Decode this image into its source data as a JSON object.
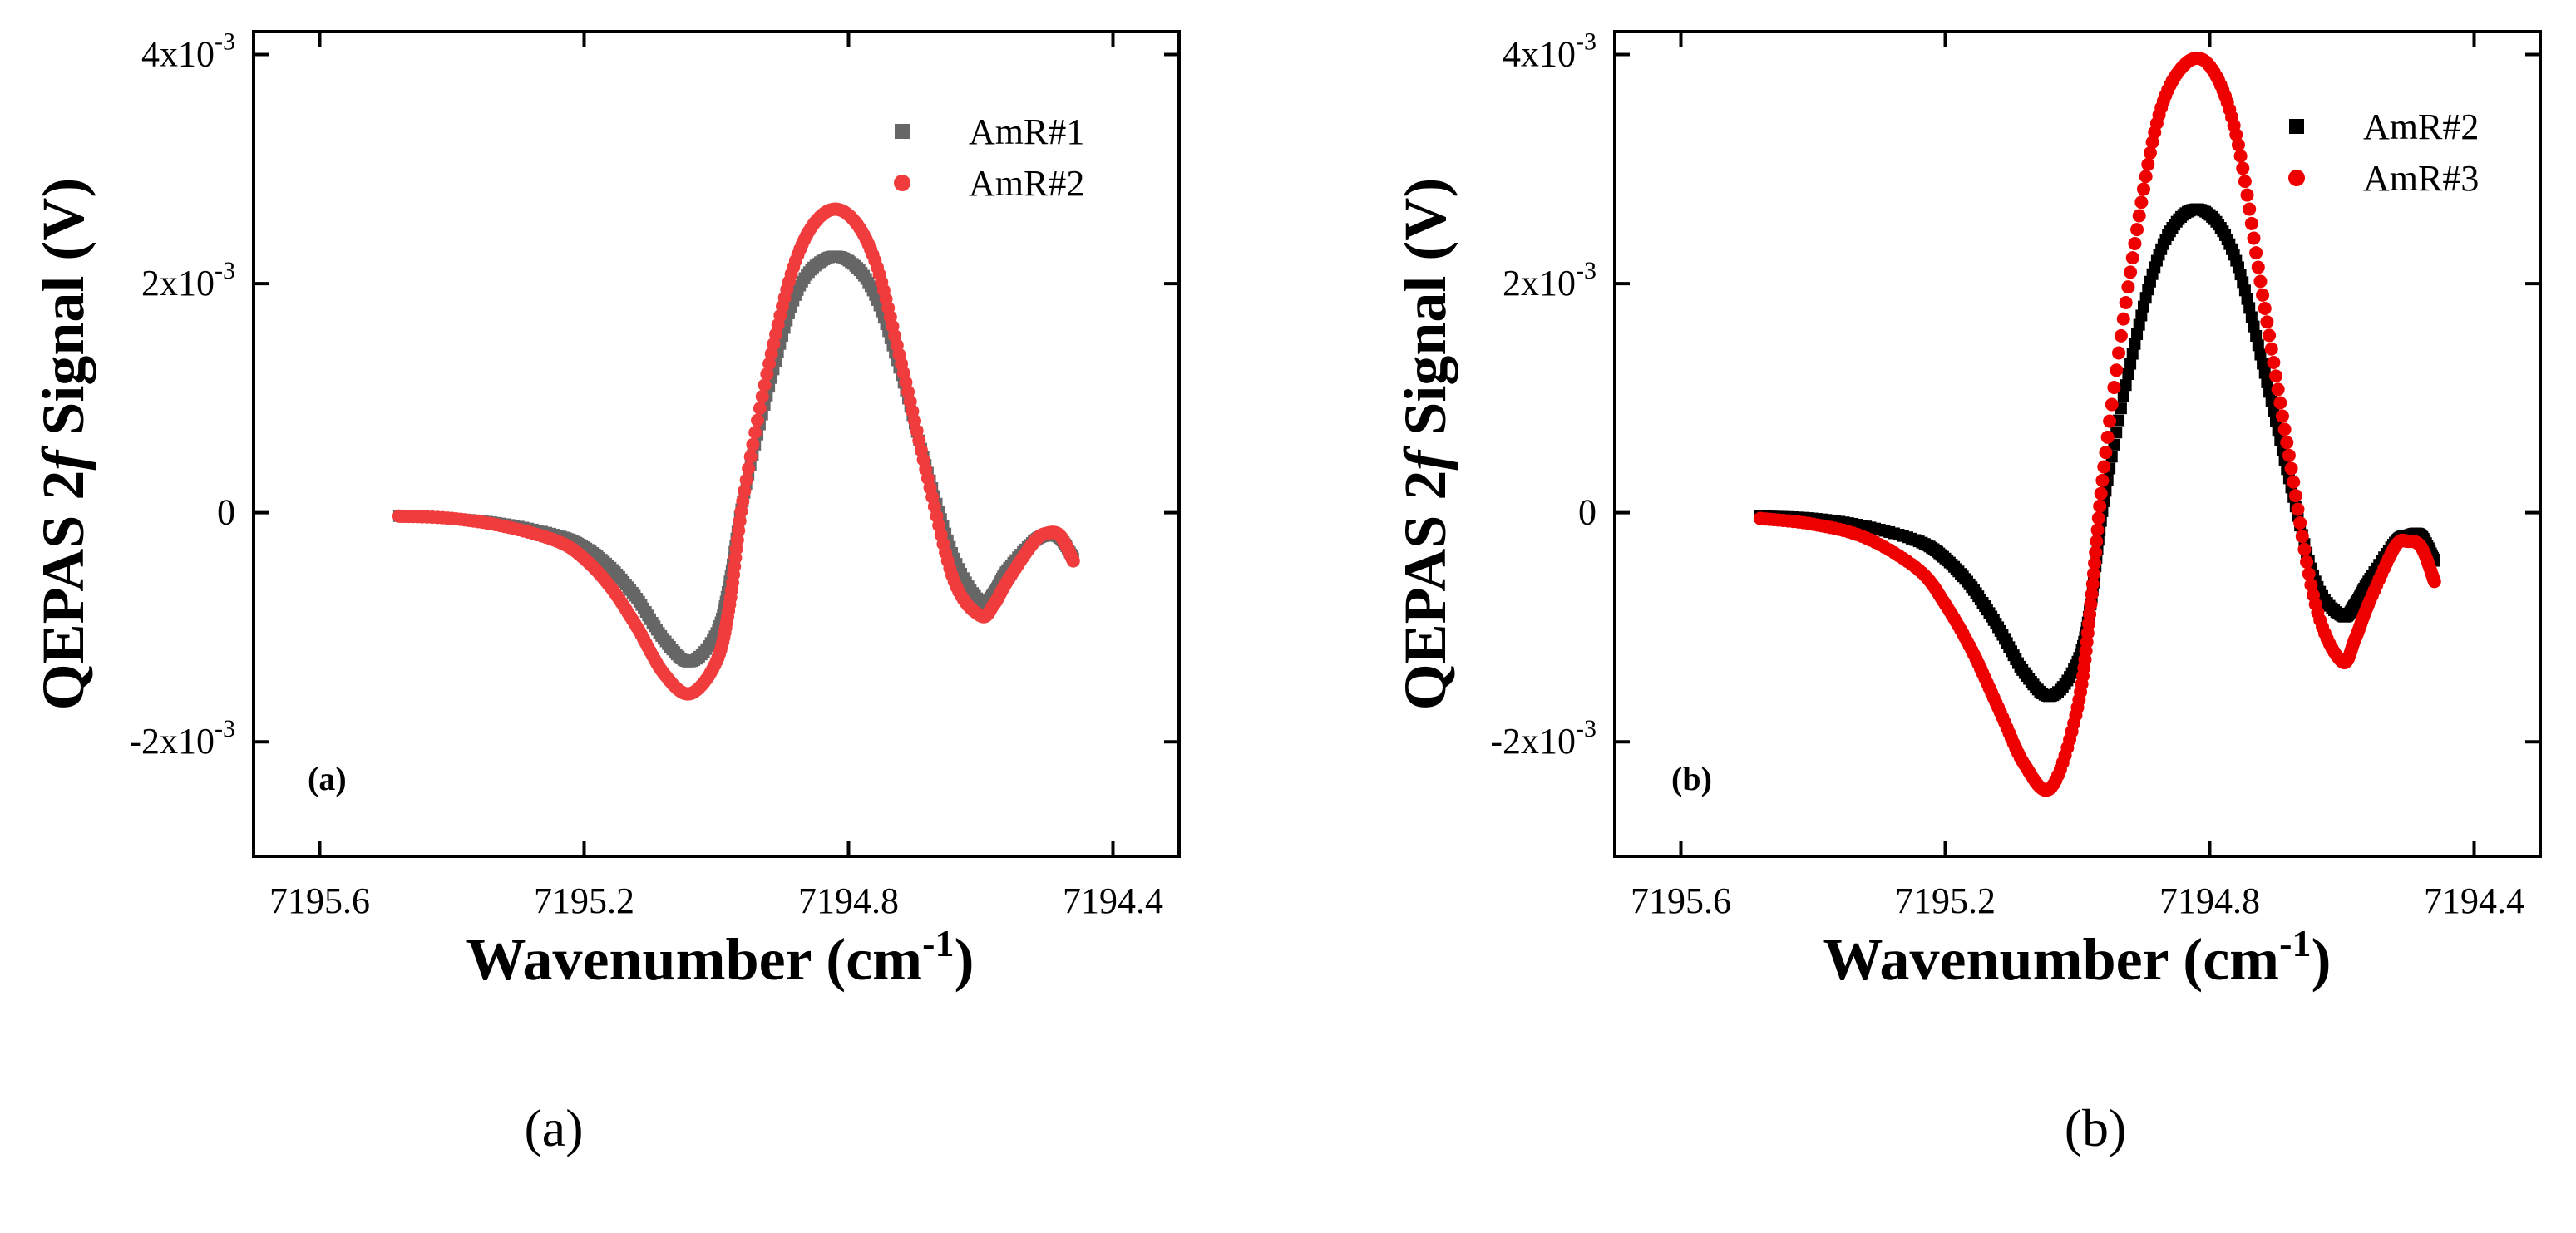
{
  "figure": {
    "captions": [
      "(a)",
      "(b)"
    ]
  },
  "chart_data": [
    {
      "type": "scatter",
      "panel_tag": "(a)",
      "xlabel": "Wavenumber (cm",
      "xlabel_sup": "-1",
      "xlabel_close": ")",
      "ylabel_prefix": "QEPAS 2",
      "ylabel_italic": "f",
      "ylabel_suffix": " Signal (V)",
      "xlim": [
        7195.7,
        7194.3
      ],
      "x_reversed": true,
      "ylim": [
        -0.003,
        0.0042
      ],
      "x_ticks": [
        7195.6,
        7195.2,
        7194.8,
        7194.4
      ],
      "x_tick_labels": [
        "7195.6",
        "7195.2",
        "7194.8",
        "7194.4"
      ],
      "y_ticks": [
        0.004,
        0.002,
        0,
        -0.002
      ],
      "y_tick_labels": [
        {
          "base": "4x10",
          "exp": "-3"
        },
        {
          "base": "2x10",
          "exp": "-3"
        },
        {
          "base": "0",
          "exp": ""
        },
        {
          "base": "-2x10",
          "exp": "-3"
        }
      ],
      "grid": false,
      "legend_position": "top-right",
      "series": [
        {
          "name": "AmR#1",
          "color": "#666666",
          "marker": "square",
          "x": [
            7195.48,
            7195.4,
            7195.32,
            7195.24,
            7195.2,
            7195.16,
            7195.12,
            7195.08,
            7195.04,
            7195.0,
            7194.98,
            7194.96,
            7194.92,
            7194.88,
            7194.84,
            7194.8,
            7194.76,
            7194.72,
            7194.68,
            7194.64,
            7194.6,
            7194.58,
            7194.56,
            7194.52,
            7194.5,
            7194.48,
            7194.46
          ],
          "y": [
            -3e-05,
            -5e-05,
            -0.0001,
            -0.0002,
            -0.0003,
            -0.00048,
            -0.00075,
            -0.0011,
            -0.0013,
            -0.00105,
            -0.0006,
            0.0001,
            0.0011,
            0.0019,
            0.0022,
            0.0022,
            0.0019,
            0.0012,
            0.00035,
            -0.0004,
            -0.00078,
            -0.0007,
            -0.0005,
            -0.00025,
            -0.0002,
            -0.00022,
            -0.0004
          ]
        },
        {
          "name": "AmR#2",
          "color": "#f03c3c",
          "marker": "circle",
          "x": [
            7195.48,
            7195.4,
            7195.32,
            7195.24,
            7195.2,
            7195.16,
            7195.12,
            7195.08,
            7195.04,
            7195.0,
            7194.98,
            7194.96,
            7194.92,
            7194.88,
            7194.84,
            7194.8,
            7194.76,
            7194.72,
            7194.68,
            7194.64,
            7194.6,
            7194.58,
            7194.56,
            7194.52,
            7194.5,
            7194.48,
            7194.46
          ],
          "y": [
            -3e-05,
            -5e-05,
            -0.00012,
            -0.00025,
            -0.0004,
            -0.00065,
            -0.001,
            -0.0014,
            -0.00158,
            -0.0013,
            -0.0008,
            0.0001,
            0.0013,
            0.0022,
            0.0026,
            0.0026,
            0.0022,
            0.0013,
            0.0003,
            -0.0006,
            -0.0009,
            -0.0008,
            -0.0006,
            -0.00026,
            -0.00018,
            -0.0002,
            -0.00042
          ]
        }
      ]
    },
    {
      "type": "scatter",
      "panel_tag": "(b)",
      "xlabel": "Wavenumber (cm",
      "xlabel_sup": "-1",
      "xlabel_close": ")",
      "ylabel_prefix": "QEPAS 2",
      "ylabel_italic": "f",
      "ylabel_suffix": " Signal (V)",
      "xlim": [
        7195.7,
        7194.3
      ],
      "x_reversed": true,
      "ylim": [
        -0.003,
        0.0042
      ],
      "x_ticks": [
        7195.6,
        7195.2,
        7194.8,
        7194.4
      ],
      "x_tick_labels": [
        "7195.6",
        "7195.2",
        "7194.8",
        "7194.4"
      ],
      "y_ticks": [
        0.004,
        0.002,
        0,
        -0.002
      ],
      "y_tick_labels": [
        {
          "base": "4x10",
          "exp": "-3"
        },
        {
          "base": "2x10",
          "exp": "-3"
        },
        {
          "base": "0",
          "exp": ""
        },
        {
          "base": "-2x10",
          "exp": "-3"
        }
      ],
      "grid": false,
      "legend_position": "top-right",
      "series": [
        {
          "name": "AmR#2",
          "color": "#000000",
          "marker": "square",
          "x": [
            7195.48,
            7195.4,
            7195.32,
            7195.24,
            7195.2,
            7195.16,
            7195.12,
            7195.08,
            7195.04,
            7195.0,
            7194.98,
            7194.96,
            7194.92,
            7194.88,
            7194.84,
            7194.8,
            7194.76,
            7194.72,
            7194.68,
            7194.64,
            7194.6,
            7194.58,
            7194.56,
            7194.52,
            7194.5,
            7194.48,
            7194.46
          ],
          "y": [
            -3e-05,
            -5e-05,
            -0.00012,
            -0.00025,
            -0.0004,
            -0.00065,
            -0.001,
            -0.0014,
            -0.0016,
            -0.0013,
            -0.0008,
            0.0001,
            0.0013,
            0.0022,
            0.0026,
            0.0026,
            0.0022,
            0.0013,
            0.0003,
            -0.0006,
            -0.0009,
            -0.0008,
            -0.0006,
            -0.00026,
            -0.0002,
            -0.0002,
            -0.00042
          ]
        },
        {
          "name": "AmR#3",
          "color": "#ee0000",
          "marker": "circle",
          "x": [
            7195.48,
            7195.4,
            7195.32,
            7195.24,
            7195.2,
            7195.16,
            7195.12,
            7195.08,
            7195.04,
            7195.0,
            7194.98,
            7194.96,
            7194.92,
            7194.88,
            7194.84,
            7194.8,
            7194.76,
            7194.72,
            7194.68,
            7194.64,
            7194.6,
            7194.58,
            7194.56,
            7194.52,
            7194.5,
            7194.48,
            7194.46
          ],
          "y": [
            -5e-05,
            -0.0001,
            -0.00022,
            -0.0005,
            -0.0008,
            -0.0012,
            -0.0017,
            -0.0022,
            -0.0024,
            -0.0017,
            -0.0008,
            0.0004,
            0.0021,
            0.0034,
            0.0039,
            0.0039,
            0.0033,
            0.0019,
            0.0005,
            -0.0008,
            -0.0013,
            -0.0011,
            -0.0008,
            -0.0003,
            -0.00025,
            -0.0003,
            -0.0006
          ]
        }
      ]
    }
  ]
}
